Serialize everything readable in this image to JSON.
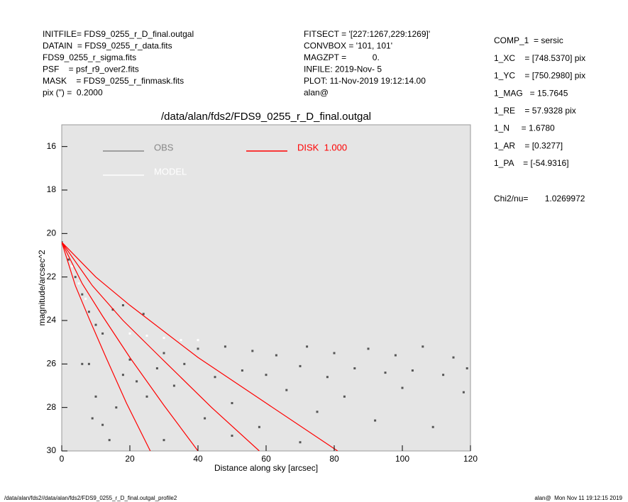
{
  "header": {
    "left": [
      "INITFILE= FDS9_0255_r_D_final.outgal",
      "DATAIN  = FDS9_0255_r_data.fits",
      "FDS9_0255_r_sigma.fits",
      "PSF    = psf_r9_over2.fits",
      "MASK    = FDS9_0255_r_finmask.fits",
      "pix (\") =  0.2000"
    ],
    "middle": [
      "FITSECT = '[227:1267,229:1269]'",
      "CONVBOX = '101, 101'",
      "MAGZPT =           0.",
      "INFILE: 2019-Nov- 5",
      "PLOT: 11-Nov-2019 19:12:14.00",
      "alan@"
    ],
    "right": [
      "COMP_1  = sersic",
      "1_XC    = [748.5370] pix",
      "1_YC    = [750.2980] pix",
      "1_MAG   = 15.7645",
      "1_RE    = 57.9328 pix",
      "1_N     = 1.6780",
      "1_AR    = [0.3277]",
      "1_PA    = [-54.9316]"
    ],
    "chi2": "Chi2/nu=       1.0269972"
  },
  "footer": {
    "left": "/data/alan/fds2//data/alan/fds2/FDS9_0255_r_D_final.outgal_profile2",
    "right": "alan@  Mon Nov 11 19:12:15 2019"
  },
  "chart_data": {
    "type": "scatter",
    "title": "/data/alan/fds2/FDS9_0255_r_D_final.outgal",
    "x_label": "Distance along sky [arcsec]",
    "y_label": "magnitude/arcsec^2",
    "xlim": [
      0,
      120
    ],
    "xticks": [
      0,
      20,
      40,
      60,
      80,
      100,
      120
    ],
    "ylim": [
      15,
      30
    ],
    "yticks": [
      16,
      18,
      20,
      22,
      24,
      26,
      28,
      30
    ],
    "invert_y": true,
    "legend": "upper left",
    "series": [
      {
        "name": "OBS",
        "color": "#555555",
        "style": "points",
        "x": [
          0,
          2,
          4,
          6,
          8,
          10,
          12,
          8,
          10,
          12,
          14,
          16,
          18,
          20,
          22,
          25,
          28,
          30,
          33,
          36,
          40,
          42,
          45,
          48,
          50,
          53,
          56,
          58,
          60,
          63,
          66,
          70,
          72,
          75,
          78,
          80,
          83,
          86,
          90,
          92,
          95,
          98,
          100,
          103,
          106,
          109,
          112,
          115,
          118,
          119,
          15,
          18,
          24,
          9,
          6,
          30,
          50,
          70
        ],
        "values": [
          20.4,
          21.2,
          22.0,
          22.8,
          23.6,
          24.2,
          24.6,
          26,
          27.5,
          28.8,
          29.5,
          28,
          26.5,
          25.8,
          26.8,
          27.5,
          26.2,
          25.5,
          27,
          26,
          25.3,
          28.5,
          26.6,
          25.2,
          27.8,
          26.3,
          25.4,
          28.9,
          26.5,
          25.6,
          27.2,
          26.1,
          25.2,
          28.2,
          26.6,
          25.5,
          27.5,
          26.2,
          25.3,
          28.6,
          26.4,
          25.6,
          27.1,
          26.3,
          25.2,
          28.9,
          26.5,
          25.7,
          27.3,
          26.2,
          23.5,
          23.3,
          23.7,
          28.5,
          26,
          29.5,
          29.3,
          29.6
        ]
      },
      {
        "name": "MODEL",
        "color": "#ffffff",
        "style": "points",
        "x": [
          1,
          3,
          5,
          7,
          20,
          25,
          30,
          35,
          40
        ],
        "values": [
          20.6,
          21.5,
          22.3,
          23.0,
          24.6,
          24.7,
          24.8,
          24.9,
          24.9
        ]
      },
      {
        "name": "DISK  1.000",
        "color": "#ff0000",
        "style": "line",
        "x": [
          0,
          4,
          8,
          13,
          19,
          26,
          null,
          0,
          6,
          12,
          20,
          30,
          40,
          null,
          0,
          9,
          18,
          29,
          44,
          58,
          null,
          0,
          10,
          20,
          40,
          60,
          81
        ],
        "values": [
          20.4,
          22.4,
          23.9,
          25.7,
          27.8,
          30,
          null,
          20.4,
          22.3,
          23.8,
          25.7,
          27.9,
          30,
          null,
          20.4,
          22.4,
          24.0,
          25.7,
          28.0,
          30,
          null,
          20.4,
          22.0,
          23.3,
          25.7,
          27.8,
          30
        ]
      }
    ]
  }
}
